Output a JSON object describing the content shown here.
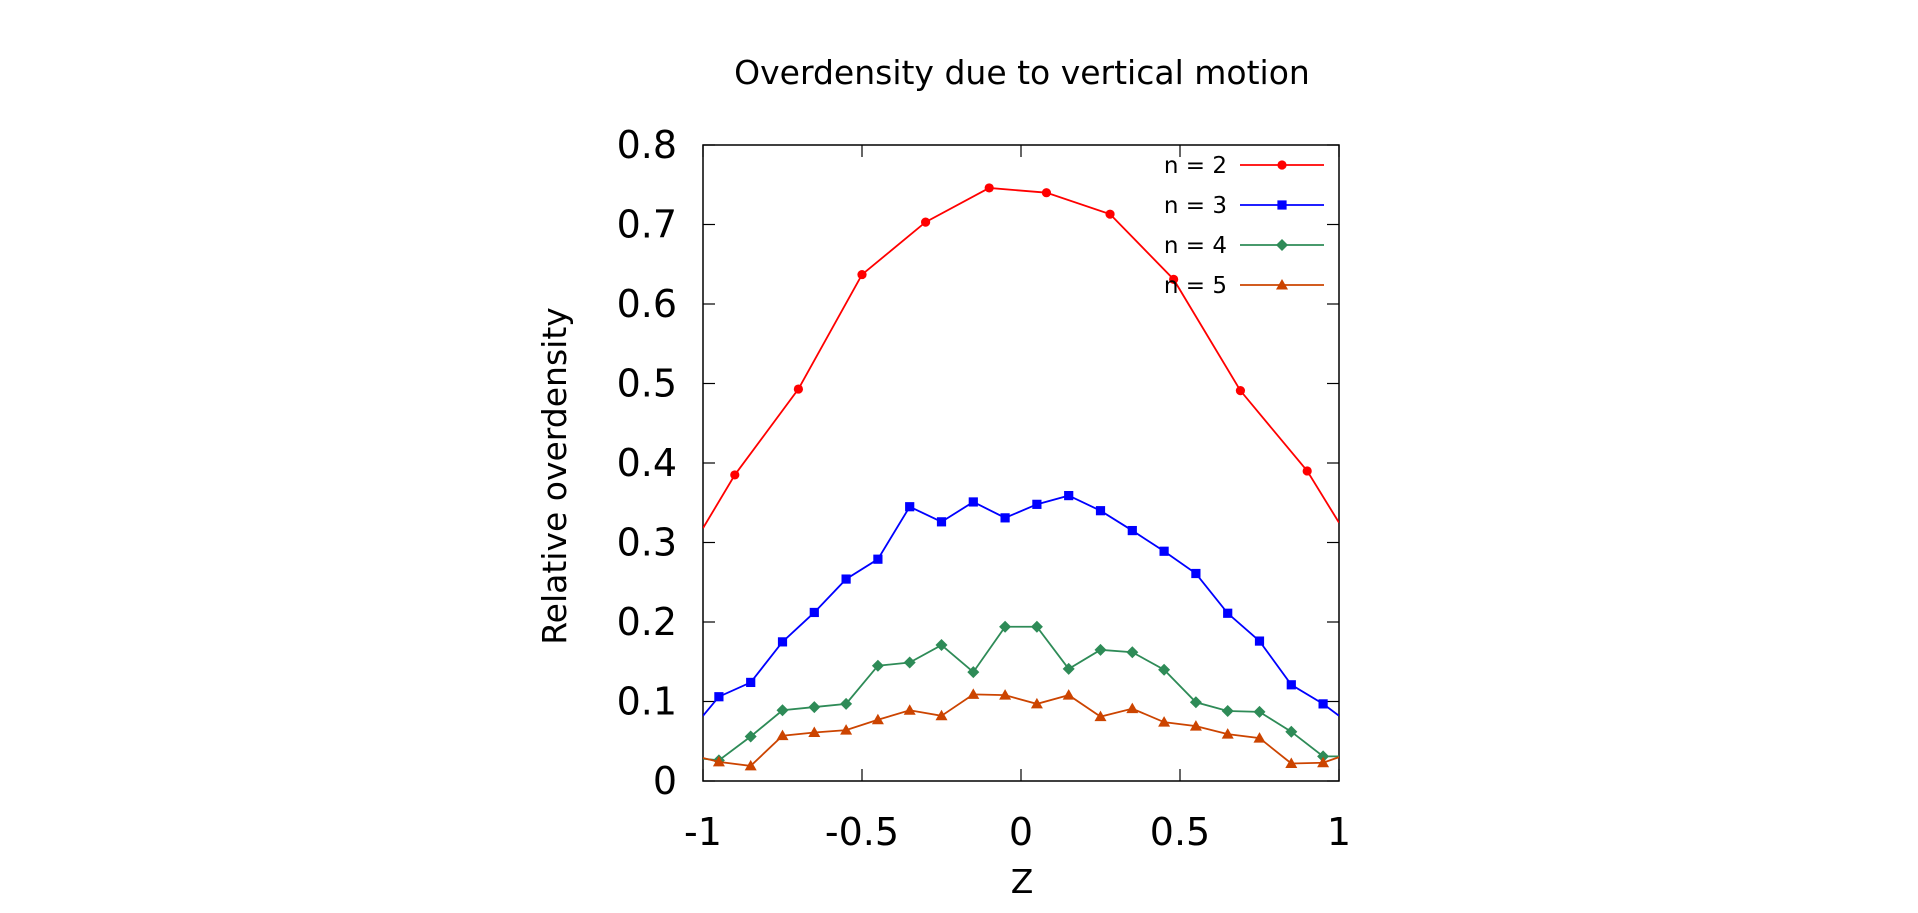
{
  "chart_data": {
    "type": "line",
    "title": "Overdensity due to vertical motion",
    "xlabel": "Z",
    "ylabel": "Relative overdensity",
    "xlim": [
      -1,
      1
    ],
    "ylim": [
      0,
      0.8
    ],
    "grid": false,
    "legend_position": "top-right",
    "x_ticks": [
      -1,
      -0.5,
      0,
      0.5,
      1
    ],
    "x_tick_labels": [
      "-1",
      "-0.5",
      "0",
      "0.5",
      "1"
    ],
    "y_ticks": [
      0,
      0.1,
      0.2,
      0.3,
      0.4,
      0.5,
      0.6,
      0.7,
      0.8
    ],
    "y_tick_labels": [
      "0",
      "0.1",
      "0.2",
      "0.3",
      "0.4",
      "0.5",
      "0.6",
      "0.7",
      "0.8"
    ],
    "series": [
      {
        "name": "n = 2",
        "color": "#ff0000",
        "marker": "circle",
        "line_x": [
          -1,
          -0.9,
          -0.7,
          -0.5,
          -0.3,
          -0.1,
          0.08,
          0.28,
          0.48,
          0.69,
          0.9,
          1
        ],
        "line_y": [
          0.318,
          0.385,
          0.493,
          0.637,
          0.703,
          0.746,
          0.74,
          0.713,
          0.631,
          0.491,
          0.39,
          0.325
        ],
        "x": [
          -0.9,
          -0.7,
          -0.5,
          -0.3,
          -0.1,
          0.08,
          0.28,
          0.48,
          0.69,
          0.9
        ],
        "values": [
          0.385,
          0.493,
          0.637,
          0.703,
          0.746,
          0.74,
          0.713,
          0.631,
          0.491,
          0.39
        ]
      },
      {
        "name": "n = 3",
        "color": "#0000ff",
        "marker": "square",
        "line_x": [
          -1,
          -0.95,
          -0.85,
          -0.75,
          -0.65,
          -0.55,
          -0.45,
          -0.35,
          -0.25,
          -0.15,
          -0.05,
          0.05,
          0.15,
          0.25,
          0.35,
          0.45,
          0.55,
          0.65,
          0.75,
          0.85,
          0.95,
          1
        ],
        "line_y": [
          0.082,
          0.106,
          0.124,
          0.175,
          0.212,
          0.254,
          0.279,
          0.345,
          0.326,
          0.351,
          0.331,
          0.348,
          0.359,
          0.34,
          0.315,
          0.289,
          0.261,
          0.211,
          0.176,
          0.121,
          0.097,
          0.082
        ],
        "x": [
          -0.95,
          -0.85,
          -0.75,
          -0.65,
          -0.55,
          -0.45,
          -0.35,
          -0.25,
          -0.15,
          -0.05,
          0.05,
          0.15,
          0.25,
          0.35,
          0.45,
          0.55,
          0.65,
          0.75,
          0.85,
          0.95
        ],
        "values": [
          0.106,
          0.124,
          0.175,
          0.212,
          0.254,
          0.279,
          0.345,
          0.326,
          0.351,
          0.331,
          0.348,
          0.359,
          0.34,
          0.315,
          0.289,
          0.261,
          0.211,
          0.176,
          0.121,
          0.097
        ]
      },
      {
        "name": "n = 4",
        "color": "#2e8b57",
        "marker": "diamond",
        "line_x": [
          -1,
          -0.95,
          -0.85,
          -0.75,
          -0.65,
          -0.55,
          -0.45,
          -0.35,
          -0.25,
          -0.15,
          -0.05,
          0.05,
          0.15,
          0.25,
          0.35,
          0.45,
          0.55,
          0.65,
          0.75,
          0.85,
          0.95,
          1
        ],
        "line_y": [
          0.028,
          0.026,
          0.056,
          0.089,
          0.093,
          0.097,
          0.145,
          0.149,
          0.171,
          0.137,
          0.194,
          0.194,
          0.141,
          0.165,
          0.162,
          0.14,
          0.099,
          0.088,
          0.087,
          0.062,
          0.031,
          0.031
        ],
        "x": [
          -0.95,
          -0.85,
          -0.75,
          -0.65,
          -0.55,
          -0.45,
          -0.35,
          -0.25,
          -0.15,
          -0.05,
          0.05,
          0.15,
          0.25,
          0.35,
          0.45,
          0.55,
          0.65,
          0.75,
          0.85,
          0.95
        ],
        "values": [
          0.026,
          0.056,
          0.089,
          0.093,
          0.097,
          0.145,
          0.149,
          0.171,
          0.137,
          0.194,
          0.194,
          0.141,
          0.165,
          0.162,
          0.14,
          0.099,
          0.088,
          0.087,
          0.062,
          0.031
        ]
      },
      {
        "name": "n = 5",
        "color": "#cc4400",
        "marker": "triangle",
        "line_x": [
          -1,
          -0.95,
          -0.85,
          -0.75,
          -0.65,
          -0.55,
          -0.45,
          -0.35,
          -0.25,
          -0.15,
          -0.05,
          0.05,
          0.15,
          0.25,
          0.35,
          0.45,
          0.55,
          0.65,
          0.75,
          0.85,
          0.95,
          1
        ],
        "line_y": [
          0.029,
          0.024,
          0.019,
          0.057,
          0.061,
          0.064,
          0.077,
          0.089,
          0.082,
          0.109,
          0.108,
          0.097,
          0.108,
          0.081,
          0.091,
          0.074,
          0.069,
          0.059,
          0.054,
          0.022,
          0.023,
          0.03
        ],
        "x": [
          -0.95,
          -0.85,
          -0.75,
          -0.65,
          -0.55,
          -0.45,
          -0.35,
          -0.25,
          -0.15,
          -0.05,
          0.05,
          0.15,
          0.25,
          0.35,
          0.45,
          0.55,
          0.65,
          0.75,
          0.85,
          0.95
        ],
        "values": [
          0.024,
          0.019,
          0.057,
          0.061,
          0.064,
          0.077,
          0.089,
          0.082,
          0.109,
          0.108,
          0.097,
          0.108,
          0.081,
          0.091,
          0.074,
          0.069,
          0.059,
          0.054,
          0.022,
          0.023
        ]
      }
    ]
  }
}
